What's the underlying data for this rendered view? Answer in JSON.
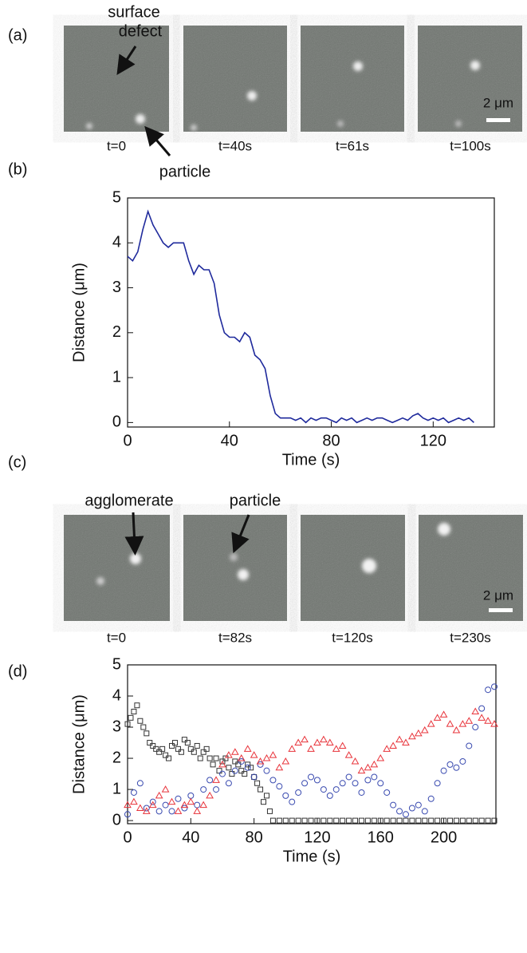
{
  "figure": {
    "panel_labels": [
      "(a)",
      "(b)",
      "(c)",
      "(d)"
    ],
    "a": {
      "captions": [
        "t=0",
        "t=40s",
        "t=61s",
        "t=100s"
      ],
      "annotations": [
        "surface",
        "defect",
        "particle"
      ],
      "scale_bar": "2 μm"
    },
    "c": {
      "captions": [
        "t=0",
        "t=82s",
        "t=120s",
        "t=230s"
      ],
      "annotations": [
        "agglomerate",
        "particle"
      ],
      "scale_bar": "2 μm"
    }
  },
  "chart_data": [
    {
      "type": "line",
      "xlabel": "Time (s)",
      "ylabel": "Distance (μm)",
      "xlim": [
        0,
        144
      ],
      "ylim": [
        -0.1,
        5
      ],
      "xticks": [
        0,
        40,
        80,
        120
      ],
      "yticks": [
        0,
        1,
        2,
        3,
        4,
        5
      ],
      "series": [
        {
          "color": "#1f2a9c",
          "x": [
            0,
            2,
            4,
            6,
            8,
            10,
            12,
            14,
            16,
            18,
            20,
            22,
            24,
            26,
            28,
            30,
            32,
            34,
            36,
            38,
            40,
            42,
            44,
            46,
            48,
            50,
            52,
            54,
            56,
            58,
            60,
            62,
            64,
            66,
            68,
            70,
            72,
            74,
            76,
            78,
            80,
            82,
            84,
            86,
            88,
            90,
            92,
            94,
            96,
            98,
            100,
            102,
            104,
            106,
            108,
            110,
            112,
            114,
            116,
            118,
            120,
            122,
            124,
            126,
            128,
            130,
            132,
            134,
            136
          ],
          "values": [
            3.7,
            3.6,
            3.8,
            4.3,
            4.7,
            4.4,
            4.2,
            4.0,
            3.9,
            4.0,
            4.0,
            4.0,
            3.6,
            3.3,
            3.5,
            3.4,
            3.4,
            3.1,
            2.4,
            2.0,
            1.9,
            1.9,
            1.8,
            2.0,
            1.9,
            1.5,
            1.4,
            1.2,
            0.6,
            0.2,
            0.1,
            0.1,
            0.1,
            0.05,
            0.1,
            0.0,
            0.1,
            0.05,
            0.1,
            0.1,
            0.05,
            0.0,
            0.1,
            0.05,
            0.1,
            0.0,
            0.05,
            0.1,
            0.05,
            0.1,
            0.1,
            0.05,
            0.0,
            0.05,
            0.1,
            0.05,
            0.15,
            0.2,
            0.1,
            0.05,
            0.1,
            0.05,
            0.1,
            0.0,
            0.05,
            0.1,
            0.05,
            0.1,
            0.0
          ]
        }
      ]
    },
    {
      "type": "scatter",
      "xlabel": "Time (s)",
      "ylabel": "Distance (μm)",
      "xlim": [
        0,
        233
      ],
      "ylim": [
        -0.1,
        5
      ],
      "xticks": [
        0,
        40,
        80,
        120,
        160,
        200
      ],
      "yticks": [
        0,
        1,
        2,
        3,
        4,
        5
      ],
      "series": [
        {
          "color": "#333333",
          "marker": "square",
          "x": [
            0,
            2,
            4,
            6,
            8,
            10,
            12,
            14,
            16,
            18,
            20,
            22,
            24,
            26,
            28,
            30,
            32,
            34,
            36,
            38,
            40,
            42,
            44,
            46,
            48,
            50,
            52,
            54,
            56,
            58,
            60,
            62,
            64,
            66,
            68,
            70,
            72,
            74,
            76,
            78,
            80,
            82,
            84,
            86,
            88,
            90,
            92,
            96,
            100,
            104,
            108,
            112,
            116,
            120,
            124,
            128,
            132,
            136,
            140,
            144,
            148,
            152,
            156,
            160,
            164,
            168,
            172,
            176,
            180,
            184,
            188,
            192,
            196,
            200,
            204,
            208,
            212,
            216,
            220,
            224,
            228,
            232
          ],
          "values": [
            3.1,
            3.3,
            3.5,
            3.7,
            3.2,
            3.0,
            2.8,
            2.5,
            2.4,
            2.3,
            2.2,
            2.3,
            2.1,
            2.0,
            2.4,
            2.5,
            2.3,
            2.2,
            2.6,
            2.5,
            2.3,
            2.2,
            2.4,
            2.0,
            2.2,
            2.3,
            2.0,
            1.8,
            2.0,
            1.6,
            1.9,
            2.0,
            1.7,
            1.5,
            1.9,
            1.8,
            1.6,
            1.5,
            1.8,
            1.7,
            1.4,
            1.2,
            1.0,
            0.6,
            0.8,
            0.3,
            0,
            0,
            0,
            0,
            0,
            0,
            0,
            0,
            0,
            0,
            0,
            0,
            0,
            0,
            0,
            0,
            0,
            0,
            0,
            0,
            0,
            0,
            0,
            0,
            0,
            0,
            0,
            0,
            0,
            0,
            0,
            0,
            0,
            0,
            0,
            0
          ]
        },
        {
          "color": "#3a4bb0",
          "marker": "circle",
          "x": [
            0,
            4,
            8,
            12,
            16,
            20,
            24,
            28,
            32,
            36,
            40,
            44,
            48,
            52,
            56,
            60,
            64,
            68,
            72,
            76,
            80,
            84,
            88,
            92,
            96,
            100,
            104,
            108,
            112,
            116,
            120,
            124,
            128,
            132,
            136,
            140,
            144,
            148,
            152,
            156,
            160,
            164,
            168,
            172,
            176,
            180,
            184,
            188,
            192,
            196,
            200,
            204,
            208,
            212,
            216,
            220,
            224,
            228,
            232
          ],
          "values": [
            0.2,
            0.9,
            1.2,
            0.4,
            0.6,
            0.3,
            0.5,
            0.3,
            0.7,
            0.4,
            0.8,
            0.5,
            1.0,
            1.3,
            1.0,
            1.5,
            1.2,
            1.6,
            1.9,
            1.7,
            1.4,
            1.8,
            1.6,
            1.3,
            1.1,
            0.8,
            0.6,
            0.9,
            1.2,
            1.4,
            1.3,
            1.0,
            0.8,
            1.0,
            1.2,
            1.4,
            1.2,
            0.9,
            1.3,
            1.4,
            1.2,
            0.9,
            0.5,
            0.3,
            0.2,
            0.4,
            0.5,
            0.3,
            0.7,
            1.2,
            1.6,
            1.8,
            1.7,
            1.9,
            2.4,
            3.0,
            3.6,
            4.2,
            4.3
          ]
        },
        {
          "color": "#e8333a",
          "marker": "triangle",
          "x": [
            0,
            4,
            8,
            12,
            16,
            20,
            24,
            28,
            32,
            36,
            40,
            44,
            48,
            52,
            56,
            60,
            64,
            68,
            72,
            76,
            80,
            84,
            88,
            92,
            96,
            100,
            104,
            108,
            112,
            116,
            120,
            124,
            128,
            132,
            136,
            140,
            144,
            148,
            152,
            156,
            160,
            164,
            168,
            172,
            176,
            180,
            184,
            188,
            192,
            196,
            200,
            204,
            208,
            212,
            216,
            220,
            224,
            228,
            232
          ],
          "values": [
            0.5,
            0.6,
            0.4,
            0.3,
            0.5,
            0.8,
            1.0,
            0.6,
            0.3,
            0.5,
            0.6,
            0.3,
            0.5,
            0.8,
            1.3,
            1.8,
            2.1,
            2.2,
            2.0,
            2.3,
            2.1,
            1.9,
            2.0,
            2.1,
            1.7,
            1.9,
            2.3,
            2.5,
            2.6,
            2.3,
            2.5,
            2.6,
            2.5,
            2.3,
            2.4,
            2.1,
            1.9,
            1.6,
            1.7,
            1.8,
            2.0,
            2.3,
            2.4,
            2.6,
            2.5,
            2.7,
            2.8,
            2.9,
            3.1,
            3.3,
            3.4,
            3.1,
            2.9,
            3.1,
            3.2,
            3.5,
            3.3,
            3.2,
            3.1
          ]
        }
      ]
    }
  ]
}
